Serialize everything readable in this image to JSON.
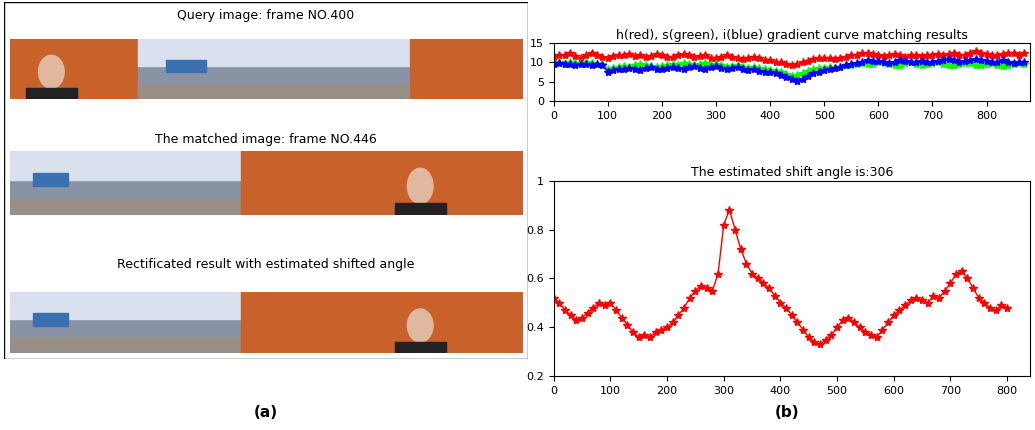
{
  "panel_labels": [
    "(a)",
    "(b)"
  ],
  "images": [
    {
      "title": "Query image: frame NO.400"
    },
    {
      "title": "The matched image: frame NO.446"
    },
    {
      "title": "Rectificated result with estimated shifted angle"
    }
  ],
  "chart_data": [
    {
      "type": "line",
      "title": "h(red), s(green), i(blue) gradient curve matching results",
      "x": [
        0,
        10,
        20,
        30,
        40,
        50,
        60,
        70,
        80,
        90,
        100,
        110,
        120,
        130,
        140,
        150,
        160,
        170,
        180,
        190,
        200,
        210,
        220,
        230,
        240,
        250,
        260,
        270,
        280,
        290,
        300,
        310,
        320,
        330,
        340,
        350,
        360,
        370,
        380,
        390,
        400,
        410,
        420,
        430,
        440,
        450,
        460,
        470,
        480,
        490,
        500,
        510,
        520,
        530,
        540,
        550,
        560,
        570,
        580,
        590,
        600,
        610,
        620,
        630,
        640,
        650,
        660,
        670,
        680,
        690,
        700,
        710,
        720,
        730,
        740,
        750,
        760,
        770,
        780,
        790,
        800,
        810,
        820,
        830,
        840,
        850,
        860,
        870
      ],
      "xlim": [
        0,
        880
      ],
      "xticks": [
        0,
        100,
        200,
        300,
        400,
        500,
        600,
        700,
        800
      ],
      "ylim": [
        0,
        15
      ],
      "yticks": [
        0,
        5,
        10,
        15
      ],
      "marker": "star",
      "line_style": "solid",
      "series": [
        {
          "color": "#ff0000",
          "values": [
            11.5,
            12.0,
            11.8,
            12.3,
            11.6,
            11.2,
            11.8,
            12.5,
            12.0,
            11.4,
            11.0,
            11.6,
            12.0,
            11.8,
            12.2,
            11.7,
            12.0,
            11.5,
            11.6,
            12.1,
            11.8,
            11.3,
            11.5,
            11.9,
            12.2,
            11.8,
            11.4,
            11.6,
            11.9,
            11.2,
            11.0,
            11.4,
            11.8,
            11.5,
            11.0,
            10.8,
            11.2,
            11.5,
            11.0,
            10.6,
            10.5,
            10.2,
            10.0,
            9.6,
            9.3,
            9.5,
            10.0,
            10.4,
            10.8,
            11.0,
            11.2,
            11.0,
            10.8,
            11.2,
            11.5,
            11.8,
            12.0,
            12.3,
            12.5,
            12.2,
            12.0,
            11.6,
            11.8,
            12.2,
            11.9,
            11.5,
            11.8,
            12.0,
            11.7,
            11.9,
            12.0,
            12.2,
            11.8,
            12.1,
            12.3,
            12.0,
            11.9,
            12.4,
            13.0,
            12.5,
            12.2,
            12.0,
            11.8,
            12.1,
            12.3,
            12.5,
            12.0,
            12.4
          ]
        },
        {
          "color": "#00ff00",
          "values": [
            9.8,
            10.0,
            9.7,
            10.2,
            9.9,
            9.8,
            10.1,
            9.9,
            9.6,
            9.5,
            8.2,
            8.5,
            8.8,
            9.0,
            8.7,
            9.2,
            9.5,
            9.3,
            9.0,
            8.8,
            9.0,
            9.4,
            9.6,
            9.3,
            9.8,
            9.5,
            9.2,
            9.6,
            9.9,
            9.4,
            9.6,
            9.2,
            8.8,
            9.0,
            9.3,
            8.9,
            8.6,
            8.8,
            8.5,
            8.2,
            8.0,
            7.8,
            7.4,
            7.0,
            6.6,
            6.8,
            7.2,
            7.8,
            8.2,
            8.5,
            8.6,
            8.8,
            8.5,
            8.9,
            9.2,
            9.4,
            9.6,
            9.8,
            9.5,
            9.7,
            10.0,
            9.8,
            9.5,
            9.2,
            9.4,
            9.8,
            10.0,
            9.6,
            9.3,
            9.5,
            9.8,
            10.0,
            9.7,
            9.4,
            9.2,
            9.5,
            9.8,
            9.9,
            9.4,
            9.2,
            9.5,
            9.8,
            9.3,
            9.0,
            9.4,
            9.7,
            9.9,
            9.6
          ]
        },
        {
          "color": "#0000ff",
          "values": [
            9.5,
            9.8,
            9.6,
            9.7,
            9.4,
            9.6,
            9.5,
            9.3,
            9.6,
            9.4,
            7.6,
            8.0,
            8.4,
            8.2,
            8.6,
            8.3,
            8.0,
            8.5,
            8.8,
            8.4,
            8.2,
            8.6,
            8.9,
            8.5,
            8.3,
            8.7,
            9.0,
            8.6,
            8.4,
            8.8,
            9.0,
            8.6,
            8.3,
            8.5,
            8.8,
            8.4,
            8.0,
            8.2,
            7.8,
            7.5,
            7.4,
            7.2,
            6.8,
            6.2,
            5.6,
            5.3,
            5.8,
            6.5,
            7.2,
            7.6,
            8.0,
            8.3,
            8.6,
            8.9,
            9.2,
            9.6,
            9.9,
            10.2,
            10.5,
            10.3,
            10.4,
            10.1,
            9.8,
            10.2,
            10.5,
            10.3,
            10.0,
            10.2,
            10.4,
            10.1,
            10.0,
            10.3,
            10.6,
            10.8,
            10.5,
            10.2,
            10.4,
            10.7,
            10.9,
            10.5,
            10.3,
            10.0,
            10.2,
            10.5,
            10.1,
            9.9,
            10.0,
            10.2
          ]
        }
      ]
    },
    {
      "type": "line",
      "title": "The estimated shift angle is:306",
      "x": [
        0,
        10,
        20,
        30,
        40,
        50,
        60,
        70,
        80,
        90,
        100,
        110,
        120,
        130,
        140,
        150,
        160,
        170,
        180,
        190,
        200,
        210,
        220,
        230,
        240,
        250,
        260,
        270,
        280,
        290,
        300,
        310,
        320,
        330,
        340,
        350,
        360,
        370,
        380,
        390,
        400,
        410,
        420,
        430,
        440,
        450,
        460,
        470,
        480,
        490,
        500,
        510,
        520,
        530,
        540,
        550,
        560,
        570,
        580,
        590,
        600,
        610,
        620,
        630,
        640,
        650,
        660,
        670,
        680,
        690,
        700,
        710,
        720,
        730,
        740,
        750,
        760,
        770,
        780,
        790,
        800
      ],
      "xlim": [
        0,
        840
      ],
      "xticks": [
        0,
        100,
        200,
        300,
        400,
        500,
        600,
        700,
        800
      ],
      "ylim": [
        0.2,
        1
      ],
      "yticks": [
        0.2,
        0.4,
        0.6,
        0.8,
        1
      ],
      "marker": "star",
      "line_style": "solid",
      "series": [
        {
          "color": "#ff0000",
          "values": [
            0.52,
            0.5,
            0.47,
            0.45,
            0.43,
            0.44,
            0.46,
            0.48,
            0.5,
            0.49,
            0.5,
            0.47,
            0.44,
            0.41,
            0.38,
            0.36,
            0.37,
            0.36,
            0.38,
            0.39,
            0.4,
            0.42,
            0.45,
            0.48,
            0.52,
            0.55,
            0.57,
            0.56,
            0.55,
            0.62,
            0.82,
            0.88,
            0.8,
            0.72,
            0.66,
            0.62,
            0.6,
            0.58,
            0.56,
            0.53,
            0.5,
            0.48,
            0.45,
            0.42,
            0.39,
            0.36,
            0.34,
            0.33,
            0.35,
            0.37,
            0.4,
            0.43,
            0.44,
            0.42,
            0.4,
            0.38,
            0.37,
            0.36,
            0.39,
            0.42,
            0.45,
            0.47,
            0.49,
            0.51,
            0.52,
            0.51,
            0.5,
            0.53,
            0.52,
            0.55,
            0.58,
            0.62,
            0.63,
            0.6,
            0.56,
            0.52,
            0.5,
            0.48,
            0.47,
            0.49,
            0.48
          ]
        }
      ]
    }
  ]
}
